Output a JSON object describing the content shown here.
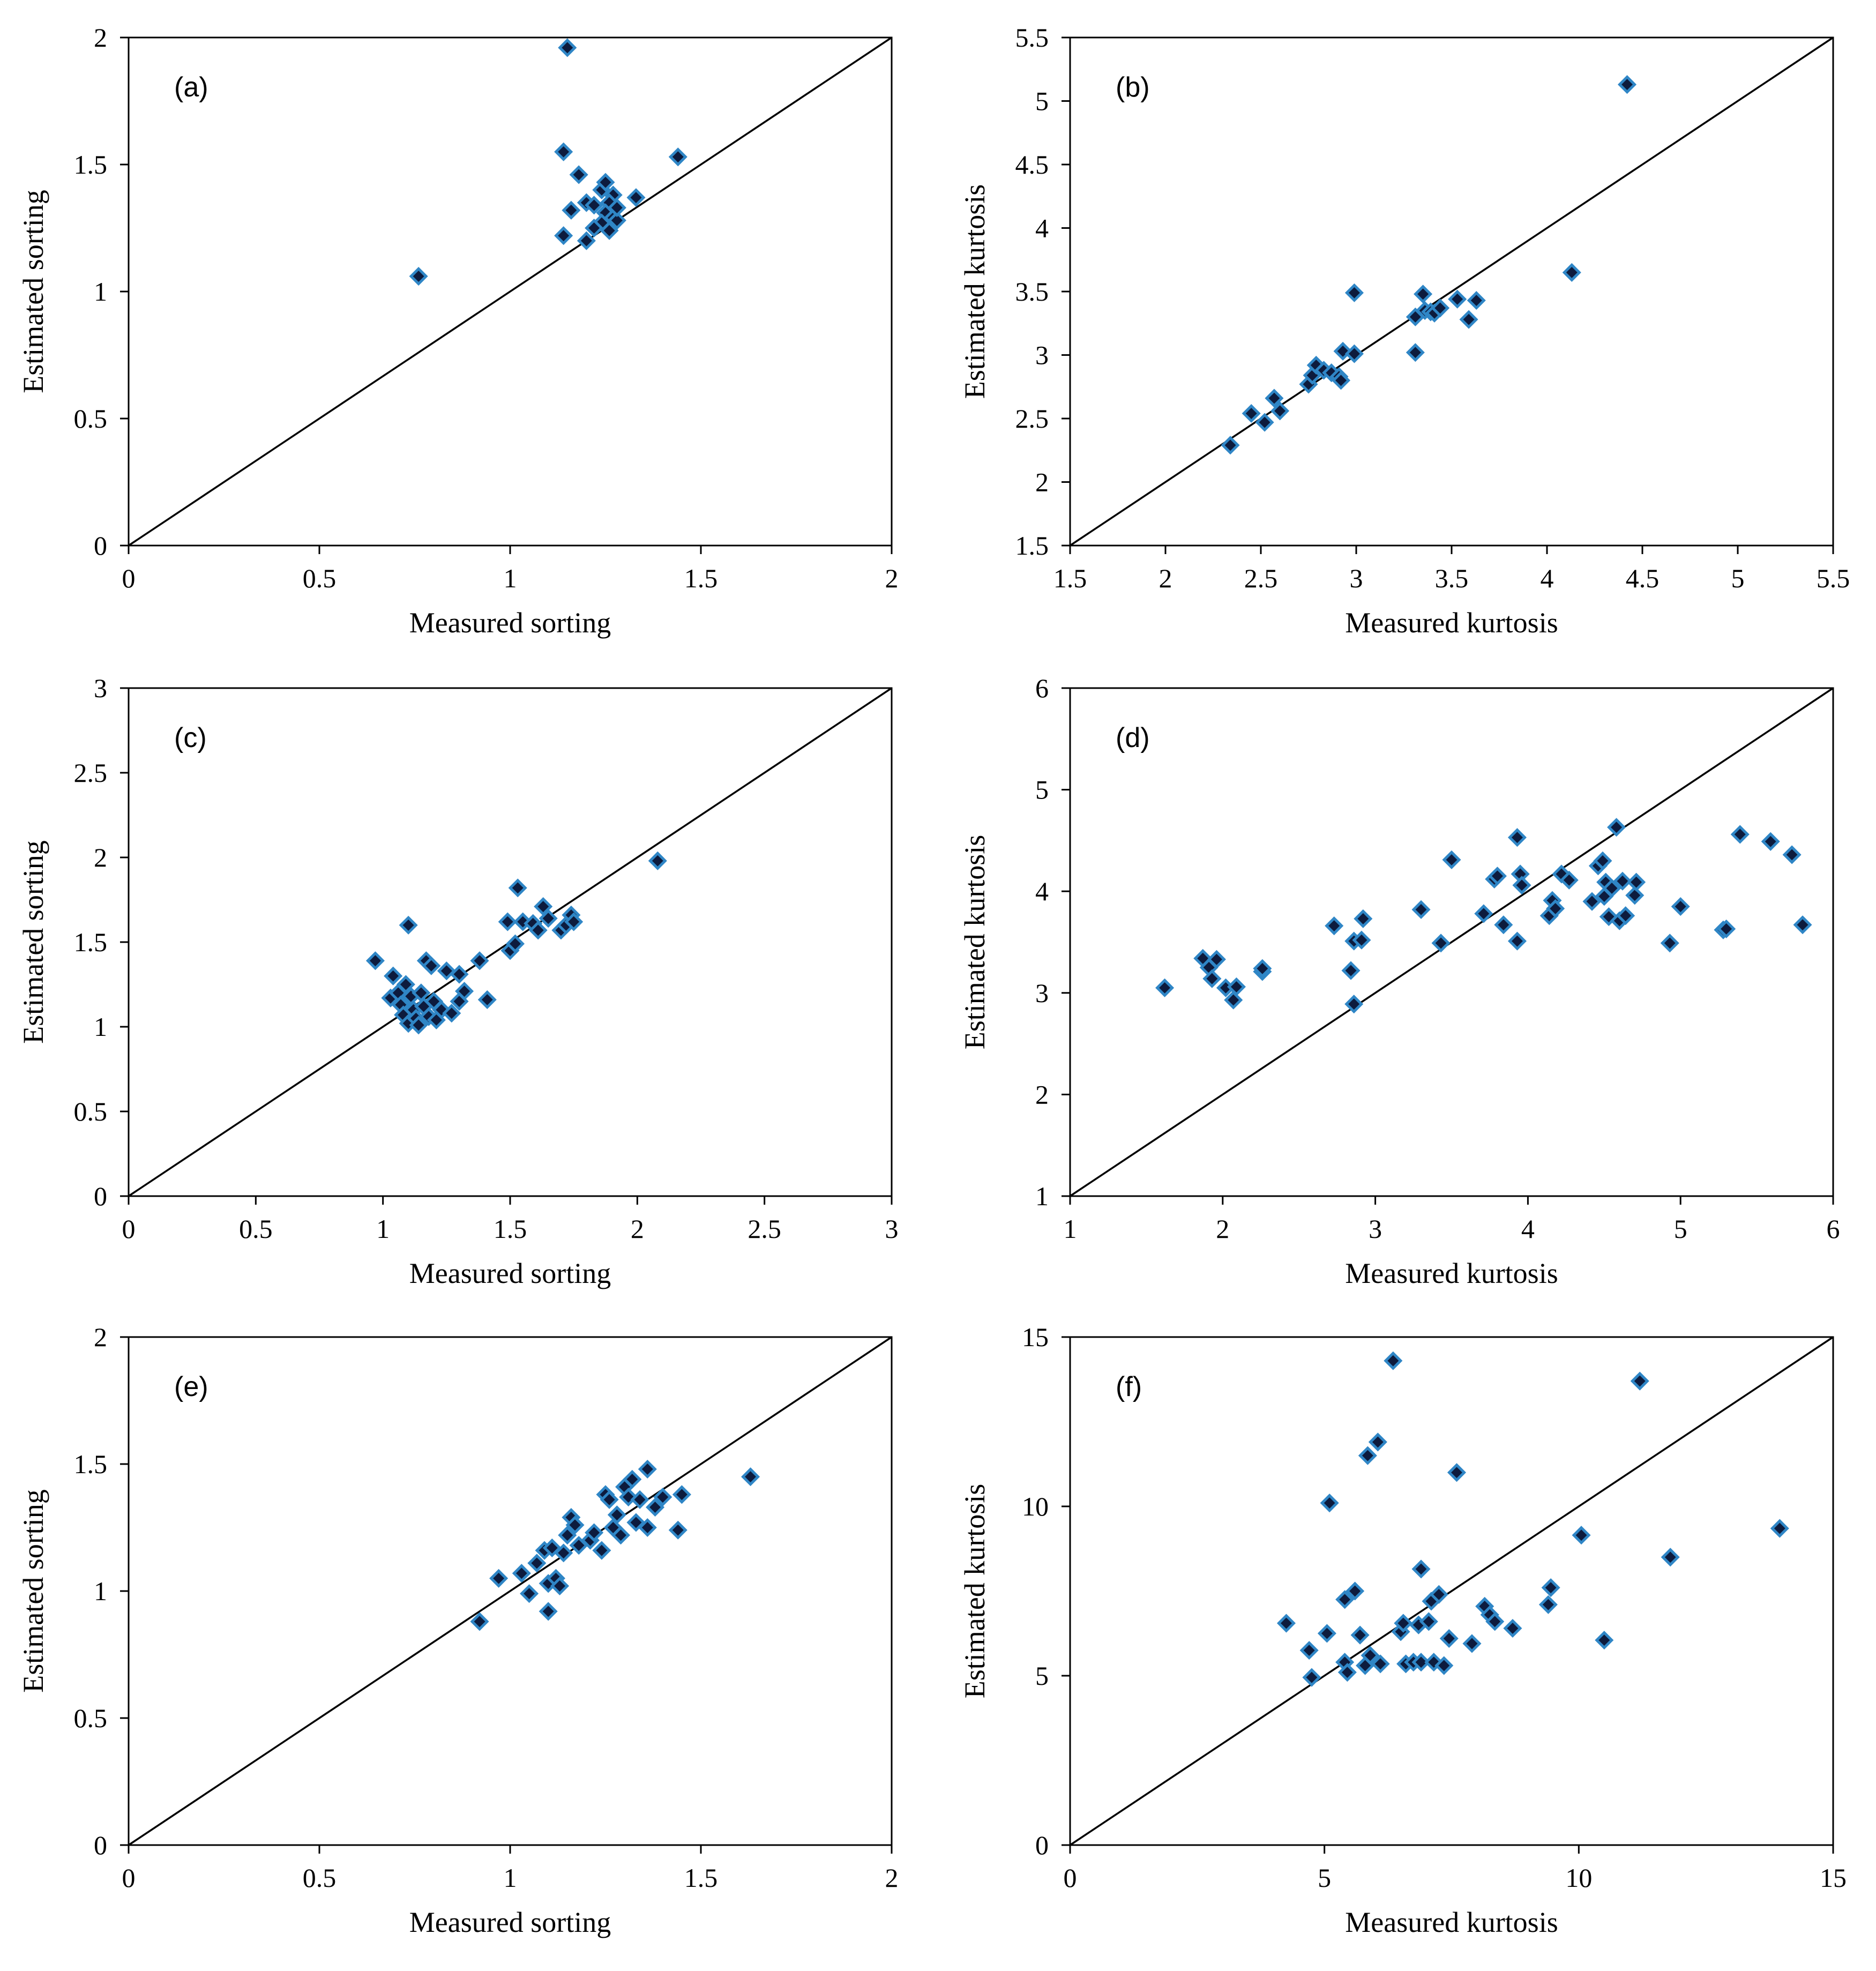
{
  "marker_colors": {
    "fill": "#0d1b3d",
    "stroke": "#2f86c6"
  },
  "chart_data": [
    {
      "id": "a",
      "type": "scatter",
      "label": "(a)",
      "xlabel": "Measured sorting",
      "ylabel": "Estimated sorting",
      "xlim": [
        0,
        2
      ],
      "ylim": [
        0,
        2
      ],
      "xticks": [
        "0",
        "0.5",
        "1",
        "1.5",
        "2"
      ],
      "yticks": [
        "0",
        "0.5",
        "1",
        "1.5",
        "2"
      ],
      "reference_line": "1:1",
      "points": [
        [
          0.76,
          1.06
        ],
        [
          1.15,
          1.96
        ],
        [
          1.14,
          1.55
        ],
        [
          1.18,
          1.46
        ],
        [
          1.16,
          1.32
        ],
        [
          1.2,
          1.35
        ],
        [
          1.22,
          1.34
        ],
        [
          1.24,
          1.4
        ],
        [
          1.25,
          1.43
        ],
        [
          1.27,
          1.38
        ],
        [
          1.26,
          1.35
        ],
        [
          1.25,
          1.31
        ],
        [
          1.27,
          1.29
        ],
        [
          1.28,
          1.28
        ],
        [
          1.24,
          1.27
        ],
        [
          1.22,
          1.25
        ],
        [
          1.26,
          1.24
        ],
        [
          1.14,
          1.22
        ],
        [
          1.2,
          1.2
        ],
        [
          1.44,
          1.53
        ],
        [
          1.33,
          1.37
        ],
        [
          1.28,
          1.33
        ]
      ]
    },
    {
      "id": "b",
      "type": "scatter",
      "label": "(b)",
      "xlabel": "Measured kurtosis",
      "ylabel": "Estimated kurtosis",
      "xlim": [
        1.5,
        5.5
      ],
      "ylim": [
        1.5,
        5.5
      ],
      "xticks": [
        "1.5",
        "2",
        "2.5",
        "3",
        "3.5",
        "4",
        "4.5",
        "5",
        "5.5"
      ],
      "yticks": [
        "1.5",
        "2",
        "2.5",
        "3",
        "3.5",
        "4",
        "4.5",
        "5",
        "5.5"
      ],
      "reference_line": "1:1",
      "points": [
        [
          2.34,
          2.29
        ],
        [
          2.45,
          2.54
        ],
        [
          2.52,
          2.47
        ],
        [
          2.57,
          2.66
        ],
        [
          2.6,
          2.56
        ],
        [
          2.75,
          2.77
        ],
        [
          2.77,
          2.84
        ],
        [
          2.79,
          2.92
        ],
        [
          2.83,
          2.88
        ],
        [
          2.87,
          2.86
        ],
        [
          2.91,
          2.83
        ],
        [
          2.92,
          2.8
        ],
        [
          2.93,
          3.03
        ],
        [
          2.99,
          3.01
        ],
        [
          2.99,
          3.49
        ],
        [
          3.31,
          3.02
        ],
        [
          3.31,
          3.3
        ],
        [
          3.35,
          3.48
        ],
        [
          3.36,
          3.35
        ],
        [
          3.39,
          3.34
        ],
        [
          3.41,
          3.33
        ],
        [
          3.44,
          3.37
        ],
        [
          3.53,
          3.44
        ],
        [
          3.59,
          3.28
        ],
        [
          3.63,
          3.43
        ],
        [
          4.13,
          3.65
        ],
        [
          4.42,
          5.13
        ]
      ]
    },
    {
      "id": "c",
      "type": "scatter",
      "label": "(c)",
      "xlabel": "Measured sorting",
      "ylabel": "Estimated sorting",
      "xlim": [
        0,
        3
      ],
      "ylim": [
        0,
        3
      ],
      "xticks": [
        "0",
        "0.5",
        "1",
        "1.5",
        "2",
        "2.5",
        "3"
      ],
      "yticks": [
        "0",
        "0.5",
        "1",
        "1.5",
        "2",
        "2.5",
        "3"
      ],
      "reference_line": "1:1",
      "points": [
        [
          0.97,
          1.39
        ],
        [
          1.03,
          1.17
        ],
        [
          1.04,
          1.3
        ],
        [
          1.06,
          1.2
        ],
        [
          1.07,
          1.13
        ],
        [
          1.08,
          1.07
        ],
        [
          1.09,
          1.25
        ],
        [
          1.1,
          1.6
        ],
        [
          1.1,
          1.02
        ],
        [
          1.11,
          1.18
        ],
        [
          1.12,
          1.1
        ],
        [
          1.13,
          1.05
        ],
        [
          1.14,
          1.01
        ],
        [
          1.15,
          1.2
        ],
        [
          1.16,
          1.12
        ],
        [
          1.17,
          1.39
        ],
        [
          1.18,
          1.06
        ],
        [
          1.19,
          1.36
        ],
        [
          1.2,
          1.15
        ],
        [
          1.21,
          1.04
        ],
        [
          1.23,
          1.1
        ],
        [
          1.25,
          1.33
        ],
        [
          1.27,
          1.08
        ],
        [
          1.3,
          1.31
        ],
        [
          1.3,
          1.15
        ],
        [
          1.32,
          1.21
        ],
        [
          1.38,
          1.39
        ],
        [
          1.41,
          1.16
        ],
        [
          1.49,
          1.62
        ],
        [
          1.5,
          1.45
        ],
        [
          1.52,
          1.49
        ],
        [
          1.53,
          1.82
        ],
        [
          1.55,
          1.62
        ],
        [
          1.59,
          1.61
        ],
        [
          1.61,
          1.57
        ],
        [
          1.63,
          1.71
        ],
        [
          1.65,
          1.64
        ],
        [
          1.7,
          1.57
        ],
        [
          1.72,
          1.6
        ],
        [
          1.74,
          1.66
        ],
        [
          1.75,
          1.62
        ],
        [
          2.08,
          1.98
        ]
      ]
    },
    {
      "id": "d",
      "type": "scatter",
      "label": "(d)",
      "xlabel": "Measured kurtosis",
      "ylabel": "Estimated kurtosis",
      "xlim": [
        1,
        6
      ],
      "ylim": [
        1,
        6
      ],
      "xticks": [
        "1",
        "2",
        "3",
        "4",
        "5",
        "6"
      ],
      "yticks": [
        "1",
        "2",
        "3",
        "4",
        "5",
        "6"
      ],
      "reference_line": "1:1",
      "points": [
        [
          1.62,
          3.05
        ],
        [
          1.87,
          3.34
        ],
        [
          1.91,
          3.25
        ],
        [
          1.93,
          3.14
        ],
        [
          1.96,
          3.33
        ],
        [
          2.02,
          3.05
        ],
        [
          2.07,
          2.93
        ],
        [
          2.09,
          3.06
        ],
        [
          2.26,
          3.21
        ],
        [
          2.26,
          3.24
        ],
        [
          2.73,
          3.66
        ],
        [
          2.84,
          3.22
        ],
        [
          2.86,
          3.51
        ],
        [
          2.86,
          2.89
        ],
        [
          2.91,
          3.52
        ],
        [
          2.92,
          3.73
        ],
        [
          3.3,
          3.82
        ],
        [
          3.43,
          3.49
        ],
        [
          3.5,
          4.31
        ],
        [
          3.71,
          3.78
        ],
        [
          3.78,
          4.12
        ],
        [
          3.8,
          4.15
        ],
        [
          3.84,
          3.67
        ],
        [
          3.93,
          3.51
        ],
        [
          3.93,
          4.53
        ],
        [
          3.95,
          4.17
        ],
        [
          3.96,
          4.06
        ],
        [
          4.14,
          3.76
        ],
        [
          4.16,
          3.91
        ],
        [
          4.18,
          3.83
        ],
        [
          4.22,
          4.17
        ],
        [
          4.27,
          4.11
        ],
        [
          4.42,
          3.9
        ],
        [
          4.46,
          4.25
        ],
        [
          4.49,
          4.3
        ],
        [
          4.5,
          3.95
        ],
        [
          4.51,
          4.09
        ],
        [
          4.53,
          3.75
        ],
        [
          4.55,
          4.03
        ],
        [
          4.58,
          4.63
        ],
        [
          4.6,
          3.71
        ],
        [
          4.62,
          4.1
        ],
        [
          4.64,
          3.76
        ],
        [
          4.7,
          3.96
        ],
        [
          4.71,
          4.09
        ],
        [
          4.93,
          3.49
        ],
        [
          5.0,
          3.85
        ],
        [
          5.28,
          3.62
        ],
        [
          5.3,
          3.63
        ],
        [
          5.39,
          4.56
        ],
        [
          5.59,
          4.49
        ],
        [
          5.73,
          4.36
        ],
        [
          5.8,
          3.67
        ]
      ]
    },
    {
      "id": "e",
      "type": "scatter",
      "label": "(e)",
      "xlabel": "Measured sorting",
      "ylabel": "Estimated sorting",
      "xlim": [
        0,
        2
      ],
      "ylim": [
        0,
        2
      ],
      "xticks": [
        "0",
        "0.5",
        "1",
        "1.5",
        "2"
      ],
      "yticks": [
        "0",
        "0.5",
        "1",
        "1.5",
        "2"
      ],
      "reference_line": "1:1",
      "points": [
        [
          0.92,
          0.88
        ],
        [
          0.97,
          1.05
        ],
        [
          1.03,
          1.07
        ],
        [
          1.05,
          0.99
        ],
        [
          1.07,
          1.11
        ],
        [
          1.09,
          1.16
        ],
        [
          1.1,
          1.03
        ],
        [
          1.1,
          0.92
        ],
        [
          1.11,
          1.17
        ],
        [
          1.12,
          1.05
        ],
        [
          1.13,
          1.02
        ],
        [
          1.14,
          1.15
        ],
        [
          1.15,
          1.22
        ],
        [
          1.16,
          1.29
        ],
        [
          1.17,
          1.26
        ],
        [
          1.18,
          1.18
        ],
        [
          1.21,
          1.2
        ],
        [
          1.22,
          1.23
        ],
        [
          1.24,
          1.16
        ],
        [
          1.25,
          1.38
        ],
        [
          1.26,
          1.36
        ],
        [
          1.27,
          1.25
        ],
        [
          1.28,
          1.3
        ],
        [
          1.29,
          1.22
        ],
        [
          1.3,
          1.41
        ],
        [
          1.31,
          1.37
        ],
        [
          1.32,
          1.44
        ],
        [
          1.33,
          1.27
        ],
        [
          1.34,
          1.36
        ],
        [
          1.36,
          1.25
        ],
        [
          1.36,
          1.48
        ],
        [
          1.38,
          1.33
        ],
        [
          1.4,
          1.37
        ],
        [
          1.44,
          1.24
        ],
        [
          1.45,
          1.38
        ],
        [
          1.63,
          1.45
        ]
      ]
    },
    {
      "id": "f",
      "type": "scatter",
      "label": "(f)",
      "xlabel": "Measured kurtosis",
      "ylabel": "Estimated kurtosis",
      "xlim": [
        0,
        15
      ],
      "ylim": [
        0,
        15
      ],
      "xticks": [
        "0",
        "5",
        "10",
        "15"
      ],
      "yticks": [
        "0",
        "5",
        "10",
        "15"
      ],
      "reference_line": "1:1",
      "points": [
        [
          4.25,
          6.55
        ],
        [
          4.7,
          5.75
        ],
        [
          4.75,
          4.95
        ],
        [
          5.05,
          6.25
        ],
        [
          5.1,
          10.1
        ],
        [
          5.4,
          5.4
        ],
        [
          5.4,
          7.25
        ],
        [
          5.45,
          5.1
        ],
        [
          5.6,
          7.5
        ],
        [
          5.7,
          6.2
        ],
        [
          5.8,
          5.3
        ],
        [
          5.85,
          11.5
        ],
        [
          5.9,
          5.6
        ],
        [
          6.05,
          11.9
        ],
        [
          6.1,
          5.35
        ],
        [
          6.35,
          14.3
        ],
        [
          6.5,
          6.3
        ],
        [
          6.55,
          6.55
        ],
        [
          6.6,
          5.35
        ],
        [
          6.75,
          5.4
        ],
        [
          6.85,
          6.5
        ],
        [
          6.9,
          8.15
        ],
        [
          6.9,
          5.4
        ],
        [
          7.05,
          6.6
        ],
        [
          7.1,
          7.2
        ],
        [
          7.15,
          5.4
        ],
        [
          7.25,
          7.4
        ],
        [
          7.35,
          5.3
        ],
        [
          7.45,
          6.1
        ],
        [
          7.6,
          11.0
        ],
        [
          7.9,
          5.95
        ],
        [
          8.15,
          7.05
        ],
        [
          8.25,
          6.8
        ],
        [
          8.35,
          6.6
        ],
        [
          8.7,
          6.4
        ],
        [
          9.4,
          7.1
        ],
        [
          9.45,
          7.6
        ],
        [
          10.05,
          9.15
        ],
        [
          10.5,
          6.05
        ],
        [
          11.2,
          13.7
        ],
        [
          11.8,
          8.5
        ],
        [
          13.95,
          9.35
        ]
      ]
    }
  ]
}
